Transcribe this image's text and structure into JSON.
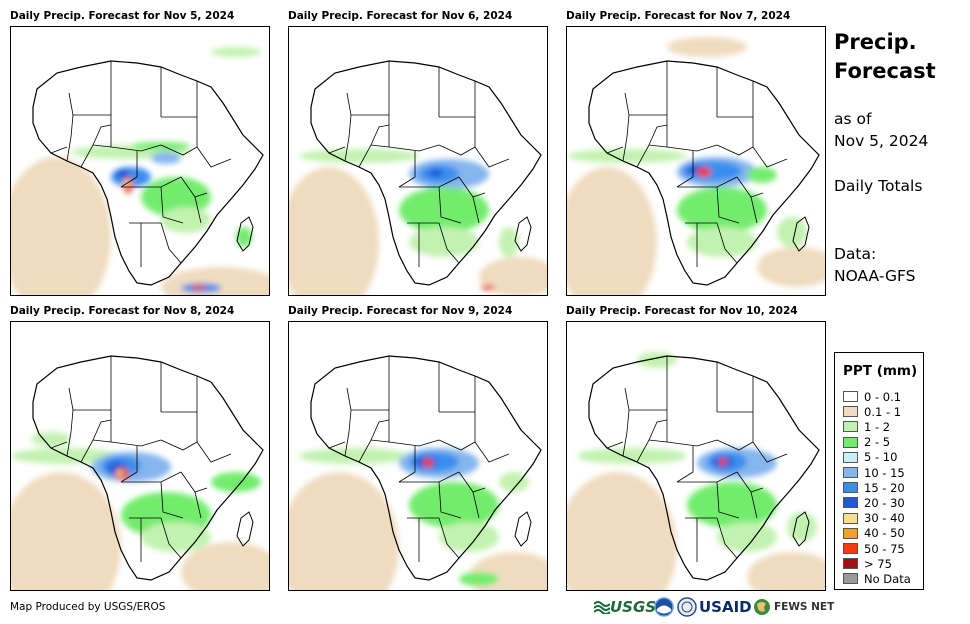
{
  "panels": [
    {
      "title": "Daily Precip. Forecast for Nov 5, 2024"
    },
    {
      "title": "Daily Precip. Forecast for Nov 6, 2024"
    },
    {
      "title": "Daily Precip. Forecast for Nov 7, 2024"
    },
    {
      "title": "Daily Precip. Forecast for Nov 8, 2024"
    },
    {
      "title": "Daily Precip. Forecast for Nov 9, 2024"
    },
    {
      "title": "Daily Precip. Forecast for Nov 10, 2024"
    }
  ],
  "side": {
    "title_line1": "Precip.",
    "title_line2": "Forecast",
    "asof_line1": "as of",
    "asof_line2": "Nov 5, 2024",
    "totals": "Daily Totals",
    "data_label": "Data:",
    "data_source": "NOAA-GFS"
  },
  "legend": {
    "title": "PPT (mm)",
    "entries": [
      {
        "label": "0 - 0.1",
        "color": "#ffffff"
      },
      {
        "label": "0.1 - 1",
        "color": "#efdcbf"
      },
      {
        "label": "1 - 2",
        "color": "#c2f2b0"
      },
      {
        "label": "2 - 5",
        "color": "#73ec6e"
      },
      {
        "label": "5 - 10",
        "color": "#c8f0f8"
      },
      {
        "label": "10 - 15",
        "color": "#86b6ee"
      },
      {
        "label": "15 - 20",
        "color": "#3a8ef0"
      },
      {
        "label": "20 - 30",
        "color": "#1f5ad6"
      },
      {
        "label": "30 - 40",
        "color": "#f7e08a"
      },
      {
        "label": "40 - 50",
        "color": "#f0a030"
      },
      {
        "label": "50 - 75",
        "color": "#f03a10"
      },
      {
        "label": "> 75",
        "color": "#a01010"
      },
      {
        "label": "No Data",
        "color": "#9a9a9a"
      }
    ]
  },
  "footer": {
    "credit": "Map Produced by USGS/EROS",
    "logos": {
      "usgs": "USGS",
      "usaid": "USAID",
      "fewsnet": "FEWS NET"
    }
  },
  "colors": {
    "tan": "#efdcbf",
    "lightgreen": "#c2f2b0",
    "green": "#73ec6e",
    "lightblue": "#86b6ee",
    "blue": "#3a8ef0",
    "darkblue": "#1f5ad6",
    "red": "#f03a10",
    "darkred": "#a01010",
    "yellow": "#f7e08a"
  }
}
